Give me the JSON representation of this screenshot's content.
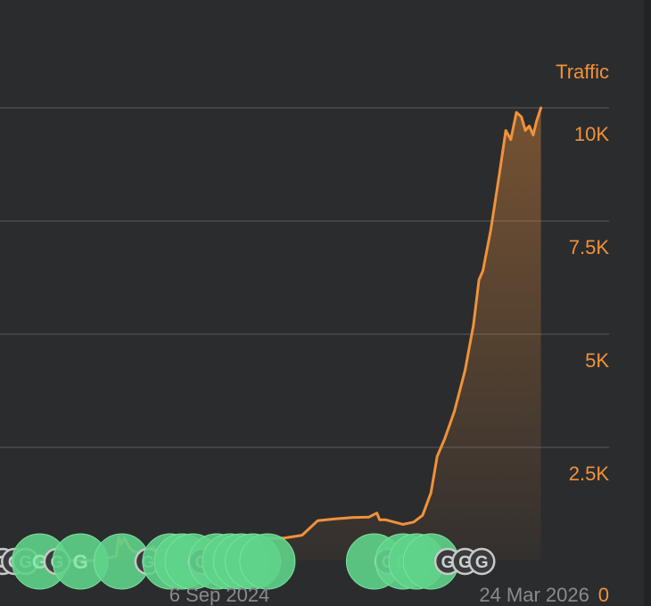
{
  "chart_data": {
    "type": "area",
    "ylabel": "Traffic",
    "ylim": [
      0,
      10000
    ],
    "yticks": [
      {
        "value": 0,
        "label": "0"
      },
      {
        "value": 2500,
        "label": "2.5K"
      },
      {
        "value": 5000,
        "label": "5K"
      },
      {
        "value": 7500,
        "label": "7.5K"
      },
      {
        "value": 10000,
        "label": "10K"
      }
    ],
    "xticks": [
      {
        "date": "2024-09-06",
        "label": "6 Sep 2024"
      },
      {
        "date": "2026-03-24",
        "label": "24 Mar 2026"
      }
    ],
    "xlim": [
      "2023-08-10",
      "2026-08-05"
    ],
    "series": [
      {
        "color": "#f0923a",
        "points": [
          [
            "2023-08-10",
            0
          ],
          [
            "2023-12-01",
            0
          ],
          [
            "2024-02-01",
            0
          ],
          [
            "2024-03-05",
            100
          ],
          [
            "2024-03-10",
            510
          ],
          [
            "2024-03-14",
            350
          ],
          [
            "2024-03-20",
            500
          ],
          [
            "2024-03-28",
            300
          ],
          [
            "2024-04-05",
            200
          ],
          [
            "2024-04-20",
            150
          ],
          [
            "2024-05-10",
            300
          ],
          [
            "2024-05-20",
            200
          ],
          [
            "2024-06-10",
            250
          ],
          [
            "2024-07-01",
            300
          ],
          [
            "2024-08-01",
            330
          ],
          [
            "2024-09-01",
            380
          ],
          [
            "2024-10-01",
            420
          ],
          [
            "2024-11-01",
            460
          ],
          [
            "2024-12-01",
            490
          ],
          [
            "2025-01-01",
            500
          ],
          [
            "2025-02-01",
            560
          ],
          [
            "2025-03-01",
            880
          ],
          [
            "2025-04-01",
            920
          ],
          [
            "2025-05-01",
            950
          ],
          [
            "2025-06-01",
            960
          ],
          [
            "2025-06-15",
            1050
          ],
          [
            "2025-06-20",
            900
          ],
          [
            "2025-07-01",
            900
          ],
          [
            "2025-08-01",
            800
          ],
          [
            "2025-08-20",
            850
          ],
          [
            "2025-09-05",
            1000
          ],
          [
            "2025-09-20",
            1500
          ],
          [
            "2025-10-01",
            2300
          ],
          [
            "2025-10-15",
            2700
          ],
          [
            "2025-11-01",
            3300
          ],
          [
            "2025-11-20",
            4200
          ],
          [
            "2025-12-05",
            5200
          ],
          [
            "2025-12-15",
            6200
          ],
          [
            "2025-12-22",
            6400
          ],
          [
            "2026-01-05",
            7300
          ],
          [
            "2026-01-20",
            8500
          ],
          [
            "2026-02-01",
            9500
          ],
          [
            "2026-02-10",
            9300
          ],
          [
            "2026-02-20",
            9900
          ],
          [
            "2026-03-01",
            9800
          ],
          [
            "2026-03-08",
            9500
          ],
          [
            "2026-03-15",
            9600
          ],
          [
            "2026-03-22",
            9400
          ],
          [
            "2026-03-28",
            9700
          ],
          [
            "2026-04-05",
            10000
          ]
        ]
      }
    ],
    "grid": true,
    "markers": [
      {
        "date": "2023-08-15",
        "label": "G",
        "kind": "gray"
      },
      {
        "date": "2023-09-05",
        "label": "G",
        "kind": "gray"
      },
      {
        "date": "2023-09-25",
        "label": "G",
        "kind": "gray"
      },
      {
        "date": "2023-10-20",
        "label": "G",
        "kind": "green"
      },
      {
        "date": "2023-11-20",
        "label": "G",
        "kind": "gray"
      },
      {
        "date": "2024-01-01",
        "label": "G",
        "kind": "green"
      },
      {
        "date": "2024-03-15",
        "label": "",
        "kind": "green"
      },
      {
        "date": "2024-05-01",
        "label": "G",
        "kind": "gray"
      },
      {
        "date": "2024-06-10",
        "label": "",
        "kind": "green"
      },
      {
        "date": "2024-07-01",
        "label": "",
        "kind": "green"
      },
      {
        "date": "2024-07-20",
        "label": "",
        "kind": "green"
      },
      {
        "date": "2024-08-05",
        "label": "G",
        "kind": "gray"
      },
      {
        "date": "2024-09-01",
        "label": "",
        "kind": "green"
      },
      {
        "date": "2024-09-25",
        "label": "",
        "kind": "green"
      },
      {
        "date": "2024-10-15",
        "label": "",
        "kind": "green"
      },
      {
        "date": "2024-11-05",
        "label": "",
        "kind": "green"
      },
      {
        "date": "2024-12-01",
        "label": "",
        "kind": "green"
      },
      {
        "date": "2025-06-10",
        "label": "",
        "kind": "green"
      },
      {
        "date": "2025-07-05",
        "label": "G",
        "kind": "gray"
      },
      {
        "date": "2025-08-01",
        "label": "G",
        "kind": "green"
      },
      {
        "date": "2025-08-25",
        "label": "",
        "kind": "green"
      },
      {
        "date": "2025-09-20",
        "label": "",
        "kind": "green"
      },
      {
        "date": "2025-10-20",
        "label": "G",
        "kind": "gray"
      },
      {
        "date": "2025-11-20",
        "label": "G",
        "kind": "gray"
      },
      {
        "date": "2025-12-20",
        "label": "G",
        "kind": "gray"
      }
    ]
  }
}
